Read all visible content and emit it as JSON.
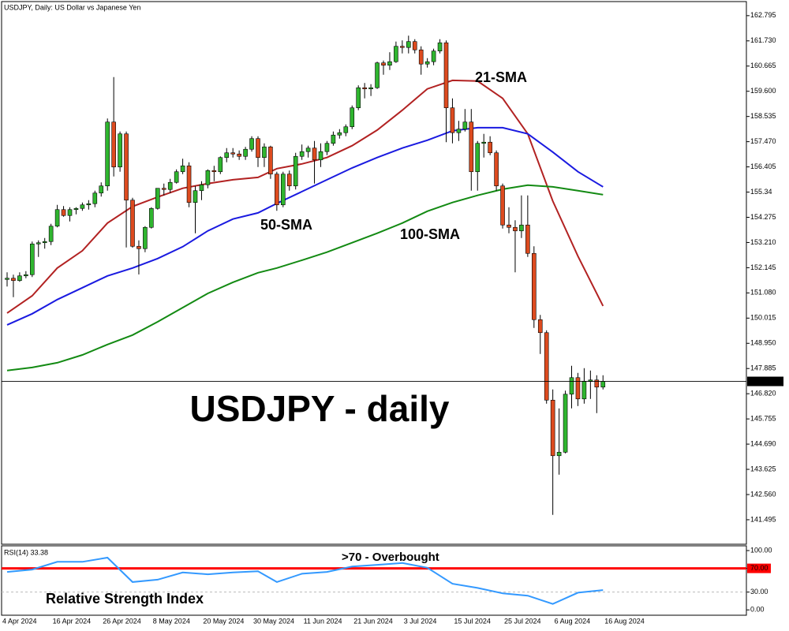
{
  "chart_data": [
    {
      "type": "candlestick",
      "title": "USDJPY, Daily:  US Dollar vs Japanese Yen",
      "heading": "USDJPY - daily",
      "categories": [
        "4 Apr 2024",
        null,
        null,
        null,
        null,
        null,
        null,
        null,
        "16 Apr 2024",
        null,
        null,
        null,
        null,
        null,
        null,
        null,
        "26 Apr 2024",
        null,
        null,
        null,
        null,
        null,
        null,
        null,
        "8 May 2024",
        null,
        null,
        null,
        null,
        null,
        null,
        null,
        "20 May 2024",
        null,
        null,
        null,
        null,
        null,
        null,
        null,
        "30 May 2024",
        null,
        null,
        null,
        null,
        null,
        null,
        null,
        "11 Jun 2024",
        null,
        null,
        null,
        null,
        null,
        null,
        null,
        "21 Jun 2024",
        null,
        null,
        null,
        null,
        null,
        null,
        null,
        "3 Jul 2024",
        null,
        null,
        null,
        null,
        null,
        null,
        null,
        "15 Jul 2024",
        null,
        null,
        null,
        null,
        null,
        null,
        null,
        "25 Jul 2024",
        null,
        null,
        null,
        null,
        null,
        null,
        null,
        "6 Aug 2024",
        null,
        null,
        null,
        null,
        null,
        null,
        null,
        "16 Aug 2024"
      ],
      "open": [
        151.65,
        151.7,
        151.6,
        151.8,
        151.85,
        153.15,
        153.2,
        153.25,
        153.9,
        154.6,
        154.35,
        154.6,
        154.65,
        154.8,
        154.85,
        155.3,
        155.6,
        158.3,
        156.4,
        157.8,
        155.0,
        153.05,
        152.95,
        153.85,
        154.65,
        155.5,
        155.45,
        155.75,
        156.2,
        156.45,
        154.9,
        155.4,
        155.65,
        156.25,
        156.2,
        156.8,
        157.0,
        156.95,
        156.85,
        157.15,
        157.6,
        156.8,
        157.25,
        156.1,
        154.8,
        156.1,
        155.6,
        156.85,
        157.05,
        157.2,
        156.7,
        157.05,
        157.4,
        157.75,
        157.85,
        158.1,
        158.9,
        159.75,
        159.7,
        159.75,
        160.8,
        160.7,
        160.85,
        161.5,
        161.45,
        161.7,
        161.35,
        160.75,
        160.85,
        161.3,
        161.65,
        158.9,
        157.85,
        158.0,
        158.3,
        156.2,
        157.4,
        157.45,
        157.0,
        155.6,
        153.95,
        153.85,
        153.7,
        153.95,
        152.75,
        149.95,
        149.4,
        146.55,
        144.2,
        144.35,
        146.8,
        147.5,
        146.6,
        147.35,
        147.4,
        147.1,
        null
      ],
      "high": [
        151.95,
        151.85,
        151.95,
        152.0,
        153.25,
        153.3,
        153.4,
        154.0,
        154.8,
        154.75,
        154.7,
        154.7,
        154.9,
        155.0,
        155.4,
        155.75,
        158.45,
        160.2,
        157.9,
        157.9,
        155.1,
        153.3,
        153.9,
        154.7,
        155.5,
        155.7,
        155.9,
        156.3,
        156.75,
        156.6,
        155.6,
        155.8,
        156.3,
        156.45,
        156.85,
        157.2,
        157.2,
        157.1,
        157.25,
        157.7,
        157.7,
        157.4,
        157.3,
        156.2,
        156.2,
        156.25,
        157.0,
        157.35,
        157.3,
        157.5,
        157.4,
        157.5,
        157.9,
        158.0,
        158.2,
        159.0,
        159.85,
        159.95,
        159.9,
        160.85,
        160.9,
        161.25,
        161.7,
        161.75,
        161.95,
        161.8,
        161.5,
        161.0,
        161.4,
        161.8,
        161.75,
        159.3,
        158.35,
        158.85,
        158.85,
        157.5,
        157.8,
        157.7,
        157.1,
        155.7,
        154.7,
        154.15,
        155.2,
        155.2,
        153.05,
        150.15,
        149.5,
        147.0,
        146.2,
        146.95,
        148.0,
        147.7,
        147.9,
        147.8,
        147.6,
        147.6,
        null
      ],
      "low": [
        151.35,
        150.9,
        151.55,
        151.7,
        151.75,
        152.6,
        152.95,
        153.1,
        153.85,
        154.3,
        154.1,
        154.4,
        154.55,
        154.6,
        154.7,
        155.15,
        155.4,
        156.0,
        156.2,
        153.0,
        152.99,
        151.86,
        152.8,
        153.8,
        154.6,
        155.2,
        155.3,
        155.7,
        156.1,
        154.7,
        153.6,
        155.0,
        155.5,
        155.8,
        156.1,
        156.6,
        156.8,
        156.7,
        156.7,
        157.05,
        156.4,
        156.4,
        155.9,
        154.55,
        154.7,
        155.4,
        155.45,
        156.7,
        156.8,
        155.7,
        156.4,
        156.9,
        157.3,
        157.6,
        157.7,
        158.0,
        158.8,
        159.3,
        159.4,
        159.7,
        160.3,
        160.5,
        160.8,
        161.2,
        161.2,
        161.2,
        160.3,
        160.6,
        160.7,
        161.2,
        157.45,
        157.4,
        157.5,
        157.9,
        155.4,
        155.4,
        156.8,
        156.9,
        155.4,
        153.8,
        153.6,
        151.95,
        153.4,
        152.6,
        149.6,
        148.5,
        146.4,
        141.7,
        143.4,
        144.3,
        146.2,
        146.3,
        146.4,
        146.6,
        146.0,
        147.0,
        null
      ],
      "close": [
        151.7,
        151.6,
        151.8,
        151.85,
        153.15,
        153.2,
        153.25,
        153.9,
        154.6,
        154.35,
        154.6,
        154.65,
        154.8,
        154.85,
        155.3,
        155.6,
        158.3,
        156.4,
        157.8,
        155.0,
        153.05,
        152.95,
        153.85,
        154.65,
        155.5,
        155.45,
        155.75,
        156.2,
        156.45,
        154.9,
        155.4,
        155.65,
        156.25,
        156.2,
        156.8,
        157.0,
        156.95,
        156.85,
        157.15,
        157.6,
        156.8,
        157.25,
        156.1,
        154.8,
        156.1,
        155.6,
        156.85,
        157.05,
        157.2,
        156.7,
        157.05,
        157.4,
        157.75,
        157.85,
        158.1,
        158.9,
        159.75,
        159.7,
        159.75,
        160.8,
        160.7,
        160.85,
        161.5,
        161.45,
        161.7,
        161.35,
        160.75,
        160.85,
        161.3,
        161.65,
        158.9,
        157.85,
        158.0,
        158.3,
        156.2,
        157.4,
        157.45,
        157.0,
        155.6,
        153.95,
        153.85,
        153.7,
        153.95,
        152.75,
        149.95,
        149.4,
        146.55,
        144.2,
        144.35,
        146.8,
        147.5,
        146.6,
        147.35,
        147.4,
        147.1,
        147.341,
        null
      ],
      "up_color": "#2fb52f",
      "down_color": "#dd4b1f",
      "series": [
        {
          "name": "21-SMA",
          "color": "#b22222",
          "x": [
            0,
            4,
            8,
            12,
            16,
            20,
            24,
            28,
            32,
            36,
            40,
            43,
            47,
            51,
            55,
            59,
            63,
            67,
            71,
            75,
            79,
            83,
            87,
            91,
            95
          ],
          "values": [
            150.23,
            150.96,
            152.13,
            152.86,
            154.03,
            154.73,
            155.13,
            155.5,
            155.7,
            155.86,
            155.96,
            156.33,
            156.53,
            156.8,
            157.3,
            157.96,
            158.8,
            159.7,
            160.06,
            160.03,
            159.3,
            157.8,
            154.96,
            152.63,
            150.53
          ]
        },
        {
          "name": "50-SMA",
          "color": "#1a1ae0",
          "x": [
            0,
            4,
            8,
            12,
            16,
            20,
            24,
            28,
            32,
            36,
            40,
            43,
            47,
            51,
            55,
            59,
            63,
            67,
            71,
            75,
            79,
            83,
            87,
            91,
            95
          ],
          "values": [
            149.73,
            150.2,
            150.8,
            151.3,
            151.8,
            152.13,
            152.53,
            153.03,
            153.7,
            154.2,
            154.46,
            154.86,
            155.36,
            155.86,
            156.36,
            156.8,
            157.2,
            157.53,
            157.93,
            158.06,
            158.06,
            157.8,
            157.03,
            156.2,
            155.56
          ]
        },
        {
          "name": "100-SMA",
          "color": "#138a13",
          "x": [
            0,
            4,
            8,
            12,
            16,
            20,
            24,
            28,
            32,
            36,
            40,
            43,
            47,
            51,
            55,
            59,
            63,
            67,
            71,
            75,
            79,
            83,
            87,
            91,
            95
          ],
          "values": [
            147.8,
            147.93,
            148.13,
            148.46,
            148.9,
            149.3,
            149.86,
            150.46,
            151.06,
            151.53,
            151.93,
            152.13,
            152.46,
            152.8,
            153.2,
            153.6,
            154.03,
            154.53,
            154.9,
            155.2,
            155.46,
            155.63,
            155.56,
            155.4,
            155.23
          ]
        }
      ],
      "last_price": 147.341,
      "ylim": [
        140.46,
        163.39
      ],
      "yticks": [
        162.795,
        {
          "value": 161.73,
          "label": "161.730"
        },
        160.665,
        {
          "value": 159.6,
          "label": "159.600"
        },
        158.535,
        {
          "value": 157.47,
          "label": "157.470"
        },
        156.405,
        155.34,
        154.275,
        {
          "value": 153.21,
          "label": "153.210"
        },
        152.145,
        {
          "value": 151.08,
          "label": "151.080"
        },
        150.015,
        {
          "value": 148.95,
          "label": "148.950"
        },
        147.885,
        {
          "value": 146.82,
          "label": "146.820"
        },
        145.755,
        {
          "value": 144.69,
          "label": "144.690"
        },
        143.625,
        {
          "value": 142.56,
          "label": "142.560"
        },
        141.495
      ]
    },
    {
      "type": "line",
      "title": "RSI(14) 33.38",
      "subtitle": "Relative Strength Index",
      "x": [
        0,
        4,
        8,
        12,
        16,
        20,
        24,
        28,
        32,
        36,
        40,
        43,
        47,
        51,
        55,
        59,
        63,
        67,
        71,
        75,
        79,
        83,
        87,
        91,
        95
      ],
      "values": [
        64,
        68,
        81,
        81,
        88,
        47,
        51,
        63,
        60,
        63,
        65,
        47,
        61,
        64,
        73,
        76,
        79,
        71,
        44,
        37,
        28,
        24,
        10,
        29,
        33.38
      ],
      "color": "#3399ff",
      "level": {
        "value": 70,
        "label": ">70 - Overbought",
        "color": "#ff0000"
      },
      "ylim": [
        -9,
        108
      ],
      "yticks": [
        {
          "value": 100,
          "label": "100.00"
        },
        {
          "value": 70,
          "label": "70.00"
        },
        {
          "value": 30,
          "label": "30.00"
        },
        {
          "value": 0,
          "label": "0.00"
        }
      ]
    }
  ]
}
